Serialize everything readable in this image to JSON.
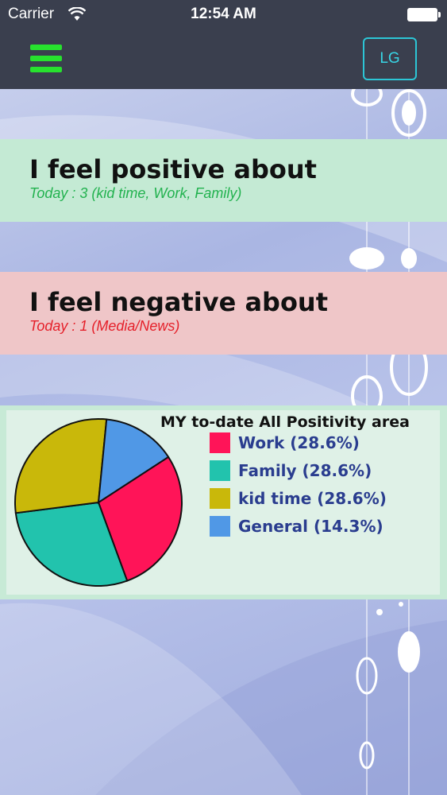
{
  "status_bar": {
    "carrier": "Carrier",
    "time": "12:54 AM"
  },
  "nav": {
    "menu_icon": "hamburger-menu-icon",
    "lg_label": "LG",
    "menu_color": "#27e22e",
    "lg_color": "#2cc6d6"
  },
  "positive": {
    "title": "I feel positive about",
    "subtitle": "Today : 3 (kid time, Work, Family)"
  },
  "negative": {
    "title": "I feel negative about",
    "subtitle": "Today : 1 (Media/News)"
  },
  "chart_data": {
    "type": "pie",
    "title": "MY to-date All Positivity area",
    "legend_position": "right",
    "categories": [
      "Work",
      "Family",
      "kid time",
      "General"
    ],
    "values": [
      28.6,
      28.6,
      28.6,
      14.3
    ],
    "labels": [
      "Work (28.6%)",
      "Family (28.6%)",
      "kid time (28.6%)",
      "General (14.3%)"
    ],
    "colors": [
      "#ff1458",
      "#22c3ad",
      "#c9b80a",
      "#5098e6"
    ]
  }
}
